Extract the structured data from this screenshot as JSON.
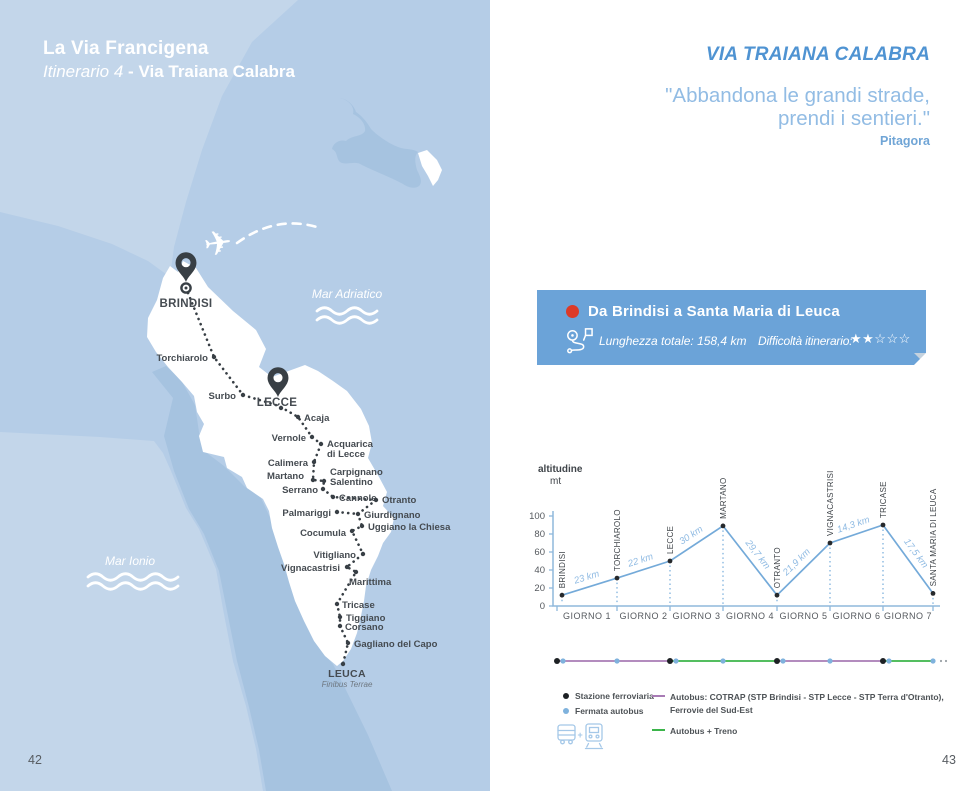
{
  "left_page": {
    "title_line1": "La Via Francigena",
    "title_line2_italic": "Itinerario 4",
    "title_line2_sep": " - ",
    "title_line2_bold": "Via Traiana Calabra",
    "page_number": "42",
    "sea_labels": {
      "adriatic": "Mar Adriatico",
      "ionian": "Mar Ionio"
    },
    "map": {
      "start_city": "BRINDISI",
      "mid_city": "LECCE",
      "end_city": "LEUCA",
      "end_city_sub": "Finibus Terrae",
      "towns": [
        {
          "name": "Torchiarolo",
          "dot": [
            214,
            357
          ],
          "label": [
            208,
            361
          ],
          "anchor": "end"
        },
        {
          "name": "Surbo",
          "dot": [
            243,
            395
          ],
          "label": [
            236,
            399
          ],
          "anchor": "end"
        },
        {
          "name": "Acaja",
          "dot": [
            298,
            417
          ],
          "label": [
            304,
            421
          ],
          "anchor": "start"
        },
        {
          "name": "Vernole",
          "dot": [
            312,
            437
          ],
          "label": [
            306,
            441
          ],
          "anchor": "end"
        },
        {
          "name": "Acquarica",
          "line2": "di Lecce",
          "dot": [
            321,
            444
          ],
          "label": [
            327,
            447
          ],
          "anchor": "start"
        },
        {
          "name": "Calimera",
          "dot": [
            314,
            462
          ],
          "label": [
            308,
            466
          ],
          "anchor": "end"
        },
        {
          "name": "Martano",
          "dot": [
            313,
            480
          ],
          "label": [
            304,
            479
          ],
          "anchor": "end"
        },
        {
          "name": "Carpignano",
          "line2": "Salentino",
          "dot": [
            324,
            481
          ],
          "label": [
            330,
            475
          ],
          "anchor": "start"
        },
        {
          "name": "Serrano",
          "dot": [
            323,
            489
          ],
          "label": [
            318,
            493
          ],
          "anchor": "end"
        },
        {
          "name": "Cannole",
          "dot": [
            333,
            497
          ],
          "label": [
            339,
            501
          ],
          "anchor": "start"
        },
        {
          "name": "Otranto",
          "dot": [
            376,
            500
          ],
          "label": [
            382,
            503
          ],
          "anchor": "start"
        },
        {
          "name": "Palmariggi",
          "dot": [
            337,
            512
          ],
          "label": [
            331,
            516
          ],
          "anchor": "end"
        },
        {
          "name": "Giurdignano",
          "dot": [
            358,
            514
          ],
          "label": [
            364,
            518
          ],
          "anchor": "start"
        },
        {
          "name": "Uggiano la Chiesa",
          "dot": [
            362,
            526
          ],
          "label": [
            368,
            530
          ],
          "anchor": "start"
        },
        {
          "name": "Cocumula",
          "dot": [
            352,
            531
          ],
          "label": [
            346,
            536
          ],
          "anchor": "end"
        },
        {
          "name": "Vitigliano",
          "dot": [
            363,
            554
          ],
          "label": [
            356,
            558
          ],
          "anchor": "end"
        },
        {
          "name": "Vignacastrisi",
          "dot": [
            347,
            567
          ],
          "label": [
            340,
            571
          ],
          "anchor": "end"
        },
        {
          "name": "Marittima",
          "dot": [
            356,
            572
          ],
          "label": [
            349,
            585
          ],
          "anchor": "start"
        },
        {
          "name": "Tricase",
          "dot": [
            337,
            604
          ],
          "label": [
            342,
            608
          ],
          "anchor": "start"
        },
        {
          "name": "Tiggiano",
          "dot": [
            340,
            617
          ],
          "label": [
            346,
            621
          ],
          "anchor": "start"
        },
        {
          "name": "Corsano",
          "dot": [
            340,
            626
          ],
          "label": [
            345,
            630
          ],
          "anchor": "start"
        },
        {
          "name": "Gagliano del Capo",
          "dot": [
            348,
            643
          ],
          "label": [
            354,
            647
          ],
          "anchor": "start"
        }
      ]
    }
  },
  "right_page": {
    "title": "VIA TRAIANA CALABRA",
    "quote_line1": "\"Abbandona le grandi strade,",
    "quote_line2": "prendi i sentieri.\"",
    "quote_author": "Pitagora",
    "banner": {
      "title": "Da Brindisi a Santa Maria di Leuca",
      "length_label": "Lunghezza totale: 158,4 km",
      "difficulty_label": "Difficoltà itinerario:",
      "stars_filled": 2,
      "stars_total": 5
    },
    "legend": {
      "train_stop": "Stazione ferroviaria",
      "bus_stop": "Fermata autobus",
      "bus_line_label1": "Autobus: COTRAP (STP Brindisi - STP Lecce - STP Terra d'Otranto),",
      "bus_line_label2": "Ferrovie del Sud-Est",
      "bus_train_label": "Autobus + Treno"
    },
    "page_number": "43"
  },
  "chart_data": {
    "type": "line",
    "title": "",
    "ylabel": "altitudine",
    "ylabel_unit": "mt",
    "yticks": [
      0,
      20,
      40,
      60,
      80,
      100
    ],
    "ylim": [
      0,
      100
    ],
    "days": [
      "GIORNO 1",
      "GIORNO 2",
      "GIORNO 3",
      "GIORNO 4",
      "GIORNO 5",
      "GIORNO 6",
      "GIORNO 7"
    ],
    "stations": [
      {
        "name": "BRINDISI",
        "altitude": 12,
        "distance": null
      },
      {
        "name": "TORCHIAROLO",
        "altitude": 31,
        "distance": "23 km"
      },
      {
        "name": "LECCE",
        "altitude": 50,
        "distance": "22 km"
      },
      {
        "name": "MARTANO",
        "altitude": 89,
        "distance": "30 km"
      },
      {
        "name": "OTRANTO",
        "altitude": 12,
        "distance": "29,7 km"
      },
      {
        "name": "VIGNACASTRISI",
        "altitude": 70,
        "distance": "21,9 km"
      },
      {
        "name": "TRICASE",
        "altitude": 90,
        "distance": "14,3 km"
      },
      {
        "name": "SANTA MARIA DI LEUCA",
        "altitude": 14,
        "distance": "17,5 km"
      }
    ],
    "transit": {
      "stops": [
        {
          "train": true
        },
        {
          "train": false
        },
        {
          "train": true
        },
        {
          "train": false
        },
        {
          "train": true
        },
        {
          "train": false
        },
        {
          "train": true
        },
        {
          "train": false
        }
      ],
      "segments": [
        {
          "from": 0,
          "to": 2,
          "type": "bus"
        },
        {
          "from": 2,
          "to": 4,
          "type": "bus_train"
        },
        {
          "from": 4,
          "to": 6,
          "type": "bus"
        },
        {
          "from": 6,
          "to": 7,
          "type": "bus_train"
        }
      ]
    },
    "colors": {
      "line": "#74aad9",
      "km_label": "#90bbe3",
      "dot": "#26292c",
      "bus": "#a87bb5",
      "bus_train": "#3bb54a",
      "bus_stop": "#7fb2dd"
    }
  }
}
